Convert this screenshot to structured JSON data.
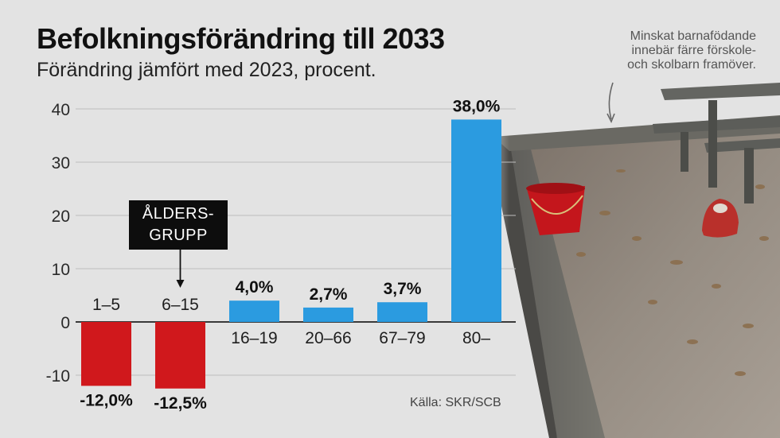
{
  "header": {
    "title": "Befolkningsförändring till 2033",
    "subtitle": "Förändring jämfört med 2023, procent."
  },
  "annotation": {
    "note_lines": [
      "Minskat barnafödande",
      "innebär färre förskole-",
      "och skolbarn framöver."
    ],
    "callout_lines": [
      "ÅLDERS-",
      "GRUPP"
    ]
  },
  "source": "Källa: SKR/SCB",
  "colors": {
    "negative": "#d0181c",
    "positive": "#2b9be0",
    "grid": "#bdbdbd",
    "background": "#e3e3e3"
  },
  "photo": {
    "description": "sandbox-with-red-bucket-toy-car-and-picnic-table"
  },
  "chart_data": {
    "type": "bar",
    "title": "Befolkningsförändring till 2033",
    "subtitle": "Förändring jämfört med 2023, procent.",
    "xlabel": "",
    "ylabel": "",
    "categories": [
      "1–5",
      "6–15",
      "16–19",
      "20–66",
      "67–79",
      "80–"
    ],
    "values": [
      -12.0,
      -12.5,
      4.0,
      2.7,
      3.7,
      38.0
    ],
    "value_labels": [
      "-12,0%",
      "-12,5%",
      "4,0%",
      "2,7%",
      "3,7%",
      "38,0%"
    ],
    "ylim": [
      -12.5,
      42
    ],
    "yticks": [
      -10,
      0,
      10,
      20,
      30,
      40
    ],
    "ytick_labels": [
      "-10",
      "0",
      "10",
      "20",
      "30",
      "40"
    ],
    "grid": true,
    "legend": "none"
  }
}
